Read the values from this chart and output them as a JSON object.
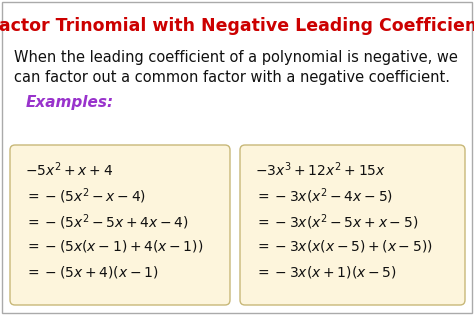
{
  "title": "Factor Trinomial with Negative Leading Coefficient",
  "title_color": "#cc0000",
  "bg_color": "#ffffff",
  "border_color": "#aaaaaa",
  "description_line1": "When the leading coefficient of a polynomial is negative, we",
  "description_line2": "can factor out a common factor with a negative coefficient.",
  "examples_label": "Examples:",
  "examples_color": "#9933cc",
  "box_bg_color": "#fdf5dc",
  "box_edge_color": "#c8b878",
  "left_lines": [
    "$-5x^2+x+4$",
    "$=-(5x^2-x-4)$",
    "$=-(5x^2-5x+4x-4)$",
    "$=-(5x(x-1)+4(x-1))$",
    "$=-(5x+4)(x-1)$"
  ],
  "right_lines": [
    "$-3x^3+12x^2+15x$",
    "$=-3x(x^2-4x-5)$",
    "$=-3x(x^2-5x+x-5)$",
    "$=-3x(x(x-5)+(x-5))$",
    "$=-3x(x+1)(x-5)$"
  ],
  "math_color": "#111111",
  "desc_fontsize": 10.5,
  "math_fontsize": 10.0,
  "title_fontsize": 12.5,
  "examples_fontsize": 11.0
}
